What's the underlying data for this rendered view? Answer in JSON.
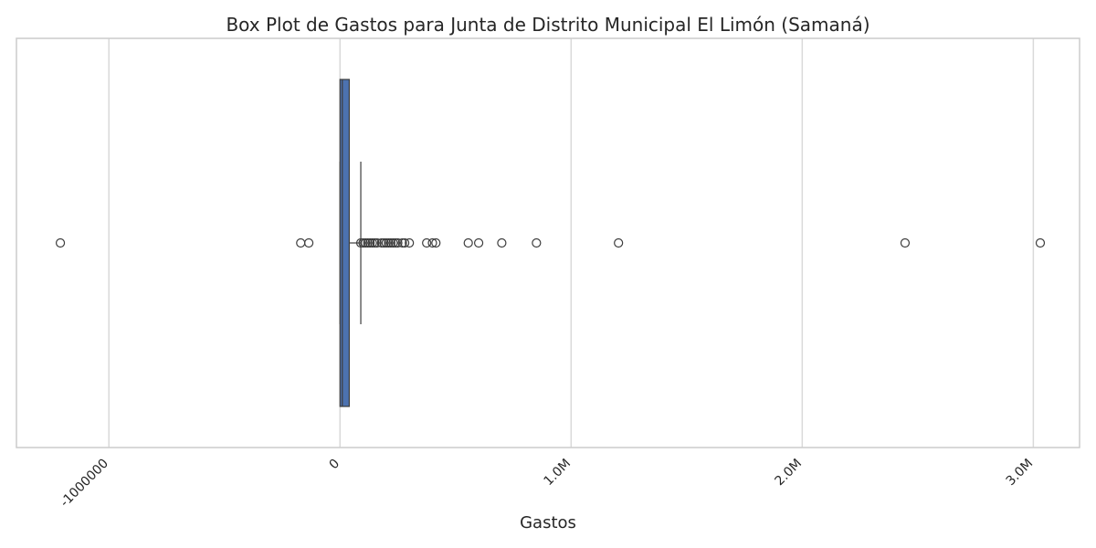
{
  "chart_data": {
    "type": "box",
    "title": "Box Plot de Gastos para Junta de Distrito Municipal El Limón (Samaná)",
    "xlabel": "Gastos",
    "ylabel": "",
    "xlim": [
      -1400000,
      3200000
    ],
    "x_ticks": [
      {
        "value": -1000000,
        "label": "-1000000"
      },
      {
        "value": 0,
        "label": "0"
      },
      {
        "value": 1000000,
        "label": "1.0M"
      },
      {
        "value": 2000000,
        "label": "2.0M"
      },
      {
        "value": 3000000,
        "label": "3.0M"
      }
    ],
    "grid": true,
    "orientation": "horizontal",
    "box": {
      "whisker_low": 0,
      "q1": 0,
      "median": 10000,
      "q3": 40000,
      "whisker_high": 90000,
      "fill": "#4c72b0",
      "edge": "#3d3d3d"
    },
    "outliers": [
      -1210000,
      -170000,
      -135000,
      90000,
      100000,
      110000,
      120000,
      130000,
      140000,
      150000,
      160000,
      180000,
      190000,
      200000,
      210000,
      220000,
      230000,
      240000,
      250000,
      270000,
      280000,
      300000,
      375000,
      400000,
      415000,
      555000,
      600000,
      700000,
      850000,
      1205000,
      2445000,
      3030000
    ]
  }
}
